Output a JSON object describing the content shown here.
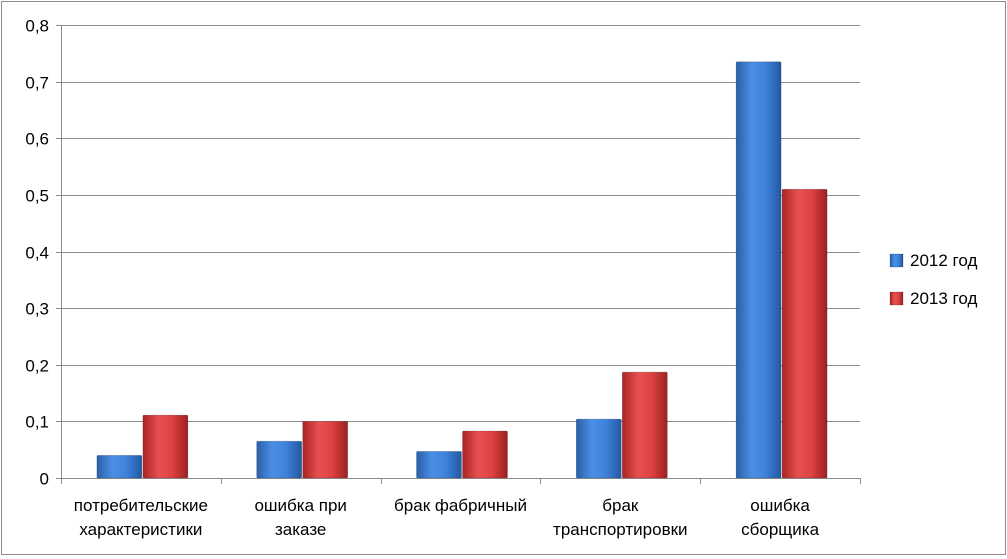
{
  "chart_data": {
    "type": "bar",
    "title": "",
    "xlabel": "",
    "ylabel": "",
    "ylim": [
      0,
      0.8
    ],
    "yticks": [
      0,
      0.1,
      0.2,
      0.3,
      0.4,
      0.5,
      0.6,
      0.7,
      0.8
    ],
    "ytick_labels": [
      "0",
      "0,1",
      "0,2",
      "0,3",
      "0,4",
      "0,5",
      "0,6",
      "0,7",
      "0,8"
    ],
    "grid": true,
    "legend_position": "right",
    "categories": [
      [
        "потребительские",
        "характеристики"
      ],
      [
        "ошибка при",
        "заказе"
      ],
      [
        "брак фабричный"
      ],
      [
        "брак",
        "транспортировки"
      ],
      [
        "ошибка",
        "сборщика"
      ]
    ],
    "series": [
      {
        "name": "2012 год",
        "color": "#3d7fd6",
        "values": [
          0.04,
          0.065,
          0.047,
          0.104,
          0.735
        ]
      },
      {
        "name": "2013 год",
        "color": "#d83b3b",
        "values": [
          0.111,
          0.1,
          0.083,
          0.187,
          0.51
        ]
      }
    ]
  }
}
